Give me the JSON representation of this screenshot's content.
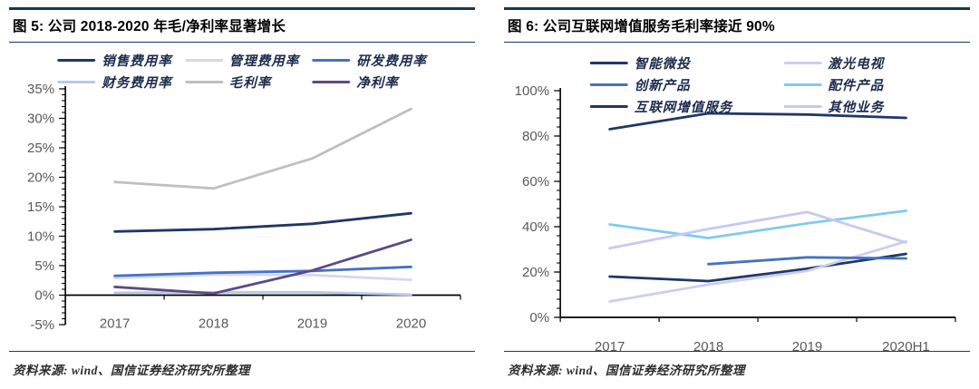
{
  "chart_data": [
    {
      "type": "line",
      "title": "图 5:  公司 2018-2020 年毛/净利率显著增长",
      "categories": [
        "2017",
        "2018",
        "2019",
        "2020"
      ],
      "series": [
        {
          "name": "销售费用率",
          "color": "#1F3864",
          "values": [
            10.8,
            11.2,
            12.1,
            13.9
          ]
        },
        {
          "name": "管理费用率",
          "color": "#D6D6F2",
          "values": [
            2.9,
            3.5,
            3.4,
            2.6
          ]
        },
        {
          "name": "研发费用率",
          "color": "#4472C4",
          "values": [
            3.3,
            3.8,
            4.1,
            4.8
          ]
        },
        {
          "name": "财务费用率",
          "color": "#B7C9E8",
          "values": [
            0.4,
            0.5,
            0.5,
            0.1
          ]
        },
        {
          "name": "毛利率",
          "color": "#BFBFBF",
          "values": [
            19.2,
            18.1,
            23.2,
            31.6
          ]
        },
        {
          "name": "净利率",
          "color": "#5B4A86",
          "values": [
            1.4,
            0.3,
            4.2,
            9.4
          ]
        }
      ],
      "ylabel": "",
      "ylim": [
        -5,
        35
      ],
      "ytick_step": 5,
      "yminor_step": 1,
      "ytick_suffix": "%",
      "legend_cols": 3,
      "legend_position": "top",
      "grid": false,
      "source": "资料来源: wind、国信证券经济研究所整理"
    },
    {
      "type": "line",
      "title": "图 6:  公司互联网增值服务毛利率接近 90%",
      "categories": [
        "2017",
        "2018",
        "2019",
        "2020H1"
      ],
      "series": [
        {
          "name": "智能微投",
          "color": "#1F3864",
          "values": [
            18,
            16,
            21.5,
            28
          ]
        },
        {
          "name": "激光电视",
          "color": "#CDCDF2",
          "values": [
            7,
            14.5,
            20.5,
            33.5
          ]
        },
        {
          "name": "创新产品",
          "color": "#4472C4",
          "values": [
            null,
            23.5,
            26.5,
            26
          ]
        },
        {
          "name": "配件产品",
          "color": "#7FCBEC",
          "values": [
            41,
            35,
            41.5,
            47
          ]
        },
        {
          "name": "互联网增值服务",
          "color": "#1F3864",
          "values": [
            83,
            90,
            89.5,
            88
          ]
        },
        {
          "name": "其他业务",
          "color": "#C6C9F0",
          "values": [
            30.5,
            39,
            46.5,
            33
          ]
        }
      ],
      "ylabel": "",
      "ylim": [
        0,
        100
      ],
      "ytick_step": 20,
      "yminor_step": 4,
      "ytick_suffix": "%",
      "legend_cols": 2,
      "legend_position": "top",
      "grid": false,
      "source": "资料来源: wind、国信证券经济研究所整理"
    }
  ]
}
